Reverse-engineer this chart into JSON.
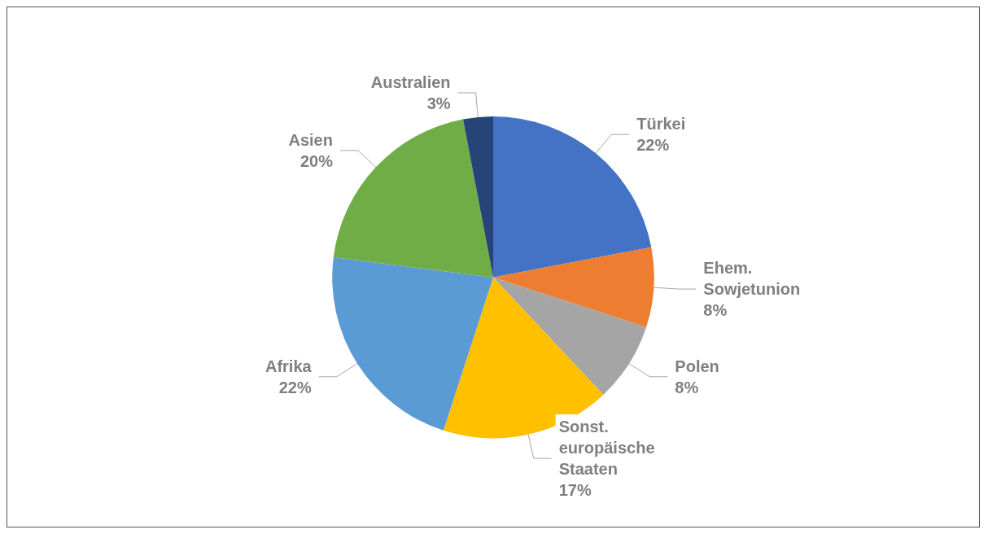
{
  "chart_data": {
    "type": "pie",
    "categories": [
      "Türkei",
      "Ehem. Sowjetunion",
      "Polen",
      "Sonst. europäische Staaten",
      "Afrika",
      "Asien",
      "Australien"
    ],
    "values": [
      22,
      8,
      8,
      17,
      22,
      20,
      3
    ],
    "colors": [
      "#4472c4",
      "#ed7d31",
      "#a5a5a5",
      "#ffc000",
      "#5b9bd5",
      "#70ad47",
      "#264478"
    ],
    "value_labels": [
      "22%",
      "8%",
      "8%",
      "17%",
      "22%",
      "20%",
      "3%"
    ]
  }
}
